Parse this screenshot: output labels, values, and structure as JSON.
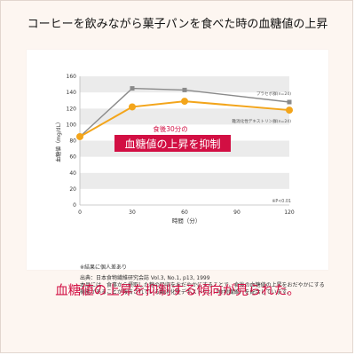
{
  "headline": "コーヒーを飲みながら菓子パンを食べた時の血糖値の上昇",
  "chart_data": {
    "type": "line",
    "x": [
      0,
      30,
      60,
      120
    ],
    "series": [
      {
        "name": "プラセボ群(n=24)",
        "values": [
          85,
          145,
          143,
          128
        ],
        "color": "#8a8a8a"
      },
      {
        "name": "難消化性デキストリン群(n=24)",
        "values": [
          85,
          122,
          129,
          118
        ],
        "color": "#f3a51b"
      }
    ],
    "xlabel": "時間（分）",
    "ylabel": "血糖値（mg/dL）",
    "xticks": [
      0,
      30,
      60,
      90,
      120
    ],
    "yticks": [
      0,
      20,
      40,
      60,
      80,
      100,
      120,
      140,
      160
    ],
    "xlim": [
      0,
      120
    ],
    "ylim": [
      0,
      160
    ],
    "grid": "horizontal bands",
    "legend": "right-of-lines",
    "annotation_caption": "食後30分の",
    "annotation_banner": "血糖値の上昇を抑制",
    "significance": "※P<0.01"
  },
  "notes": {
    "individual": "※結果に個人差あり",
    "source": "出典：日本食物繊維研究会誌 Vol.3, No.1, p13, 1999",
    "body": "本品には、食事から摂取した糖の吸収をおだやかにすることで、食後の血糖値の上昇をおだやかにする機能があることが報告されている難消化性デキストリン（食物繊維）を配合しています。"
  },
  "conclusion": "血糖値の上昇を抑制する傾向が見られた。",
  "colors": {
    "accent": "#d20f43",
    "gray_series": "#8a8a8a",
    "orange_series": "#f3a51b",
    "band": "#ebebeb"
  }
}
